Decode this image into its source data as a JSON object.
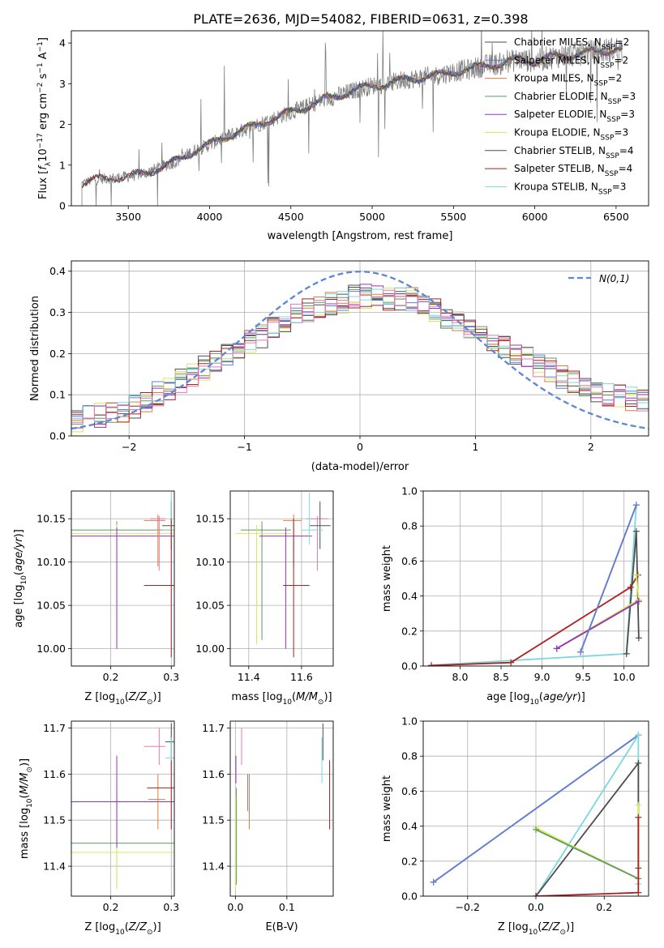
{
  "figure": {
    "title": "PLATE=2636, MJD=54082, FIBERID=0631, z=0.398"
  },
  "colors": {
    "Chabrier MILES": "#4d4d4d",
    "Salpeter MILES": "#5b7fdc",
    "Kroupa MILES": "#e07c3e",
    "Chabrier ELODIE": "#5e9a5e",
    "Salpeter ELODIE": "#9b30c2",
    "Kroupa ELODIE": "#d8e85a",
    "Chabrier STELIB": "#4d4d4d",
    "Salpeter STELIB": "#b01e1e",
    "Kroupa STELIB": "#7dd8de",
    "data": "#808080",
    "gaussian": "#5b87d6",
    "extra_pink": "#e878b4"
  },
  "chart_data": [
    {
      "id": "spectrum",
      "type": "line",
      "title": "PLATE=2636, MJD=54082, FIBERID=0631, z=0.398",
      "xlabel": "wavelength [Angstrom, rest frame]",
      "ylabel": "Flux [f_λ 10^-17 erg cm^-2 s^-1 A^-1]",
      "xlim": [
        3150,
        6700
      ],
      "ylim": [
        0,
        4.3
      ],
      "xticks": [
        3500,
        4000,
        4500,
        5000,
        5500,
        6000,
        6500
      ],
      "yticks": [
        0,
        1,
        2,
        3,
        4
      ],
      "grid": false,
      "legend_position": "upper-right",
      "continuum": {
        "x": [
          3215,
          3300,
          3400,
          3500,
          3600,
          3700,
          3800,
          3900,
          4000,
          4100,
          4200,
          4300,
          4400,
          4500,
          4600,
          4700,
          4800,
          4900,
          5000,
          5100,
          5200,
          5300,
          5400,
          5500,
          5600,
          5700,
          5800,
          5900,
          6000,
          6100,
          6200,
          6300,
          6400,
          6500,
          6540
        ],
        "y": [
          0.55,
          0.65,
          0.68,
          0.72,
          0.8,
          0.95,
          1.1,
          1.35,
          1.5,
          1.7,
          1.85,
          2.0,
          2.15,
          2.3,
          2.45,
          2.6,
          2.72,
          2.85,
          2.95,
          3.0,
          3.1,
          3.15,
          3.2,
          3.3,
          3.35,
          3.45,
          3.5,
          3.6,
          3.55,
          3.65,
          3.7,
          3.75,
          3.8,
          3.85,
          3.85
        ]
      },
      "series": [
        {
          "name": "Chabrier MILES",
          "nssp": "2",
          "x_range": [
            3520,
            6540
          ]
        },
        {
          "name": "Salpeter MILES",
          "nssp": "2",
          "x_range": [
            3520,
            6540
          ]
        },
        {
          "name": "Kroupa MILES",
          "nssp": "2",
          "x_range": [
            3520,
            6540
          ]
        },
        {
          "name": "Chabrier ELODIE",
          "nssp": "3",
          "x_range": [
            3900,
            6540
          ]
        },
        {
          "name": "Salpeter ELODIE",
          "nssp": "3",
          "x_range": [
            3900,
            6540
          ]
        },
        {
          "name": "Kroupa ELODIE",
          "nssp": "3",
          "x_range": [
            3900,
            6540
          ]
        },
        {
          "name": "Chabrier STELIB",
          "nssp": "4",
          "x_range": [
            3215,
            6540
          ]
        },
        {
          "name": "Salpeter STELIB",
          "nssp": "4",
          "x_range": [
            3215,
            6540
          ]
        },
        {
          "name": "Kroupa STELIB",
          "nssp": "3",
          "x_range": [
            3215,
            6540
          ]
        }
      ]
    },
    {
      "id": "residuals",
      "type": "line",
      "xlabel": "(data-model)/error",
      "ylabel": "Normed distribution",
      "xlim": [
        -2.5,
        2.5
      ],
      "ylim": [
        0,
        0.425
      ],
      "xticks": [
        -2,
        -1,
        0,
        1,
        2
      ],
      "yticks": [
        0.0,
        0.1,
        0.2,
        0.3,
        0.4
      ],
      "grid": true,
      "legend_position": "upper-right",
      "gaussian_label": "N(0,1)",
      "histogram_envelope": {
        "x": [
          -2.5,
          -2.0,
          -1.5,
          -1.0,
          -0.5,
          0.0,
          0.5,
          1.0,
          1.5,
          2.0,
          2.5
        ],
        "y": [
          0.035,
          0.065,
          0.14,
          0.22,
          0.3,
          0.34,
          0.33,
          0.25,
          0.18,
          0.11,
          0.08
        ]
      },
      "bin_width": 0.1
    },
    {
      "id": "Z_vs_age",
      "type": "scatter",
      "xlabel": "Z [log10(Z/Z⊙)]",
      "ylabel": "age [log10(age/yr)]",
      "xlim": [
        0.135,
        0.305
      ],
      "ylim": [
        9.98,
        10.182
      ],
      "xticks": [
        0.2,
        0.3
      ],
      "yticks": [
        10.0,
        10.05,
        10.1,
        10.15
      ],
      "grid": true,
      "points": [
        {
          "color": "Chabrier ELODIE",
          "x": 0.21,
          "y": 10.137,
          "xerr": [
            0.135,
            0.305
          ],
          "yerr": [
            10.01,
            10.147
          ]
        },
        {
          "color": "Kroupa ELODIE",
          "x": 0.21,
          "y": 10.133,
          "xerr": [
            0.135,
            0.305
          ],
          "yerr": [
            10.005,
            10.143
          ]
        },
        {
          "color": "Salpeter ELODIE",
          "x": 0.21,
          "y": 10.13,
          "xerr": [
            0.135,
            0.305
          ],
          "yerr": [
            10.0,
            10.14
          ]
        },
        {
          "color": "Kroupa MILES",
          "x": 0.278,
          "y": 10.148,
          "xerr": [
            0.255,
            0.29
          ],
          "yerr": [
            10.095,
            10.155
          ]
        },
        {
          "color": "extra_pink",
          "x": 0.28,
          "y": 10.15,
          "xerr": [
            0.265,
            0.29
          ],
          "yerr": [
            10.09,
            10.153
          ]
        },
        {
          "color": "Chabrier STELIB",
          "x": 0.3,
          "y": 10.142,
          "xerr": [
            0.285,
            0.305
          ],
          "yerr": [
            10.115,
            10.17
          ]
        },
        {
          "color": "Kroupa STELIB",
          "x": 0.3,
          "y": 10.137,
          "xerr": [
            0.285,
            0.305
          ],
          "yerr": [
            10.12,
            10.18
          ]
        },
        {
          "color": "Salpeter STELIB",
          "x": 0.3,
          "y": 10.073,
          "xerr": [
            0.255,
            0.305
          ],
          "yerr": [
            9.99,
            10.15
          ]
        }
      ]
    },
    {
      "id": "mass_vs_age",
      "type": "scatter",
      "xlabel": "mass [log10(M/M⊙)]",
      "ylabel": "",
      "xlim": [
        11.33,
        11.72
      ],
      "ylim": [
        9.98,
        10.182
      ],
      "xticks": [
        11.4,
        11.6
      ],
      "yticks": [
        10.0,
        10.05,
        10.1,
        10.15
      ],
      "grid": true,
      "points": [
        {
          "color": "Chabrier ELODIE",
          "x": 11.45,
          "y": 10.137,
          "xerr": [
            11.37,
            11.56
          ],
          "yerr": [
            10.01,
            10.147
          ]
        },
        {
          "color": "Kroupa ELODIE",
          "x": 11.43,
          "y": 10.133,
          "xerr": [
            11.35,
            11.56
          ],
          "yerr": [
            10.005,
            10.143
          ]
        },
        {
          "color": "Salpeter ELODIE",
          "x": 11.54,
          "y": 10.13,
          "xerr": [
            11.44,
            11.64
          ],
          "yerr": [
            10.0,
            10.14
          ]
        },
        {
          "color": "Kroupa MILES",
          "x": 11.57,
          "y": 10.148,
          "xerr": [
            11.53,
            11.6
          ],
          "yerr": [
            10.095,
            10.155
          ]
        },
        {
          "color": "extra_pink",
          "x": 11.66,
          "y": 10.15,
          "xerr": [
            11.62,
            11.7
          ],
          "yerr": [
            10.09,
            10.153
          ]
        },
        {
          "color": "Chabrier STELIB",
          "x": 11.67,
          "y": 10.142,
          "xerr": [
            11.63,
            11.71
          ],
          "yerr": [
            10.115,
            10.17
          ]
        },
        {
          "color": "Kroupa STELIB",
          "x": 11.63,
          "y": 10.137,
          "xerr": [
            11.6,
            11.68
          ],
          "yerr": [
            10.12,
            10.18
          ]
        },
        {
          "color": "Salpeter STELIB",
          "x": 11.57,
          "y": 10.073,
          "xerr": [
            11.53,
            11.63
          ],
          "yerr": [
            9.99,
            10.15
          ]
        }
      ]
    },
    {
      "id": "age_vs_weight",
      "type": "line",
      "xlabel": "age [log10(age/yr)]",
      "ylabel": "mass weight",
      "xlim": [
        7.55,
        10.3
      ],
      "ylim": [
        0,
        1.0
      ],
      "xticks": [
        8.0,
        8.5,
        9.0,
        9.5,
        10.0
      ],
      "yticks": [
        0.0,
        0.2,
        0.4,
        0.6,
        0.8,
        1.0
      ],
      "grid": true,
      "series": [
        {
          "color": "Kroupa STELIB",
          "x": [
            7.65,
            10.03,
            10.15
          ],
          "y": [
            0.005,
            0.07,
            0.92
          ]
        },
        {
          "color": "Salpeter STELIB",
          "x": [
            7.65,
            8.62,
            10.08,
            10.17
          ],
          "y": [
            0.003,
            0.02,
            0.45,
            0.52
          ]
        },
        {
          "color": "Chabrier STELIB",
          "x": [
            10.03,
            10.15,
            10.18
          ],
          "y": [
            0.07,
            0.77,
            0.16
          ]
        },
        {
          "color": "Kroupa ELODIE",
          "x": [
            9.18,
            10.18,
            10.15
          ],
          "y": [
            0.1,
            0.38,
            0.52
          ]
        },
        {
          "color": "Chabrier ELODIE",
          "x": [
            9.18,
            10.18
          ],
          "y": [
            0.1,
            0.37
          ]
        },
        {
          "color": "Salpeter ELODIE",
          "x": [
            9.18,
            10.18
          ],
          "y": [
            0.1,
            0.37
          ]
        },
        {
          "color": "Kroupa MILES",
          "x": [
            9.47,
            10.15
          ],
          "y": [
            0.08,
            0.92
          ]
        },
        {
          "color": "Salpeter MILES",
          "x": [
            9.47,
            10.15
          ],
          "y": [
            0.08,
            0.92
          ]
        }
      ]
    },
    {
      "id": "Z_vs_mass",
      "type": "scatter",
      "xlabel": "Z [log10(Z/Z⊙)]",
      "ylabel": "mass [log10(M/M⊙)]",
      "xlim": [
        0.135,
        0.305
      ],
      "ylim": [
        11.335,
        11.715
      ],
      "xticks": [
        0.2,
        0.3
      ],
      "yticks": [
        11.4,
        11.5,
        11.6,
        11.7
      ],
      "grid": true,
      "points": [
        {
          "color": "Chabrier ELODIE",
          "x": 0.21,
          "y": 11.45,
          "xerr": [
            0.135,
            0.305
          ],
          "yerr": [
            11.36,
            11.57
          ]
        },
        {
          "color": "Kroupa ELODIE",
          "x": 0.21,
          "y": 11.43,
          "xerr": [
            0.135,
            0.305
          ],
          "yerr": [
            11.35,
            11.55
          ]
        },
        {
          "color": "Salpeter ELODIE",
          "x": 0.21,
          "y": 11.54,
          "xerr": [
            0.135,
            0.305
          ],
          "yerr": [
            11.44,
            11.64
          ]
        },
        {
          "color": "Kroupa MILES",
          "x": 0.278,
          "y": 11.545,
          "xerr": [
            0.262,
            0.29
          ],
          "yerr": [
            11.48,
            11.6
          ]
        },
        {
          "color": "extra_pink",
          "x": 0.28,
          "y": 11.66,
          "xerr": [
            0.255,
            0.29
          ],
          "yerr": [
            11.62,
            11.7
          ]
        },
        {
          "color": "Chabrier STELIB",
          "x": 0.3,
          "y": 11.67,
          "xerr": [
            0.29,
            0.305
          ],
          "yerr": [
            11.63,
            11.71
          ]
        },
        {
          "color": "Kroupa STELIB",
          "x": 0.3,
          "y": 11.635,
          "xerr": [
            0.29,
            0.305
          ],
          "yerr": [
            11.6,
            11.68
          ]
        },
        {
          "color": "Salpeter STELIB",
          "x": 0.3,
          "y": 11.57,
          "xerr": [
            0.26,
            0.305
          ],
          "yerr": [
            11.48,
            11.63
          ]
        }
      ]
    },
    {
      "id": "ebv_vs_mass",
      "type": "scatter",
      "xlabel": "E(B-V)",
      "ylabel": "",
      "xlim": [
        -0.01,
        0.19
      ],
      "ylim": [
        11.335,
        11.715
      ],
      "xticks": [
        0.0,
        0.1
      ],
      "yticks": [
        11.4,
        11.5,
        11.6,
        11.7
      ],
      "grid": true,
      "points": [
        {
          "color": "Kroupa ELODIE",
          "x": 0.0,
          "yerr": [
            11.35,
            11.55
          ]
        },
        {
          "color": "Chabrier ELODIE",
          "x": 0.002,
          "yerr": [
            11.36,
            11.57
          ]
        },
        {
          "color": "Salpeter ELODIE",
          "x": 0.001,
          "yerr": [
            11.58,
            11.64
          ]
        },
        {
          "color": "extra_pink",
          "x": 0.012,
          "yerr": [
            11.62,
            11.7
          ]
        },
        {
          "color": "Salpeter MILES",
          "x": 0.024,
          "yerr": [
            11.52,
            11.6
          ]
        },
        {
          "color": "Kroupa MILES",
          "x": 0.027,
          "yerr": [
            11.48,
            11.6
          ]
        },
        {
          "color": "Kroupa STELIB",
          "x": 0.168,
          "yerr": [
            11.58,
            11.68
          ]
        },
        {
          "color": "Chabrier STELIB",
          "x": 0.17,
          "yerr": [
            11.63,
            11.71
          ]
        },
        {
          "color": "Salpeter STELIB",
          "x": 0.183,
          "yerr": [
            11.48,
            11.63
          ]
        }
      ]
    },
    {
      "id": "Z_vs_weight",
      "type": "line",
      "xlabel": "Z [log10(Z/Z⊙)]",
      "ylabel": "mass weight",
      "xlim": [
        -0.33,
        0.33
      ],
      "ylim": [
        0,
        1.0
      ],
      "xticks": [
        -0.2,
        0.0,
        0.2
      ],
      "yticks": [
        0.0,
        0.2,
        0.4,
        0.6,
        0.8,
        1.0
      ],
      "grid": true,
      "series": [
        {
          "color": "Kroupa MILES",
          "x": [
            -0.3,
            0.3
          ],
          "y": [
            0.08,
            0.92
          ]
        },
        {
          "color": "Salpeter MILES",
          "x": [
            -0.3,
            0.3
          ],
          "y": [
            0.08,
            0.92
          ]
        },
        {
          "color": "Kroupa STELIB",
          "x": [
            0.0,
            0.3,
            0.3
          ],
          "y": [
            0.0,
            0.92,
            0.07
          ]
        },
        {
          "color": "Chabrier STELIB",
          "x": [
            0.0,
            0.3,
            0.3
          ],
          "y": [
            0.0,
            0.76,
            0.16
          ]
        },
        {
          "color": "Kroupa ELODIE",
          "x": [
            0.0,
            0.3,
            0.3
          ],
          "y": [
            0.39,
            0.1,
            0.52
          ]
        },
        {
          "color": "Chabrier ELODIE",
          "x": [
            0.0,
            0.3
          ],
          "y": [
            0.38,
            0.1
          ]
        },
        {
          "color": "Salpeter STELIB",
          "x": [
            0.0,
            0.3,
            0.3
          ],
          "y": [
            0.0,
            0.02,
            0.45
          ]
        }
      ]
    }
  ]
}
